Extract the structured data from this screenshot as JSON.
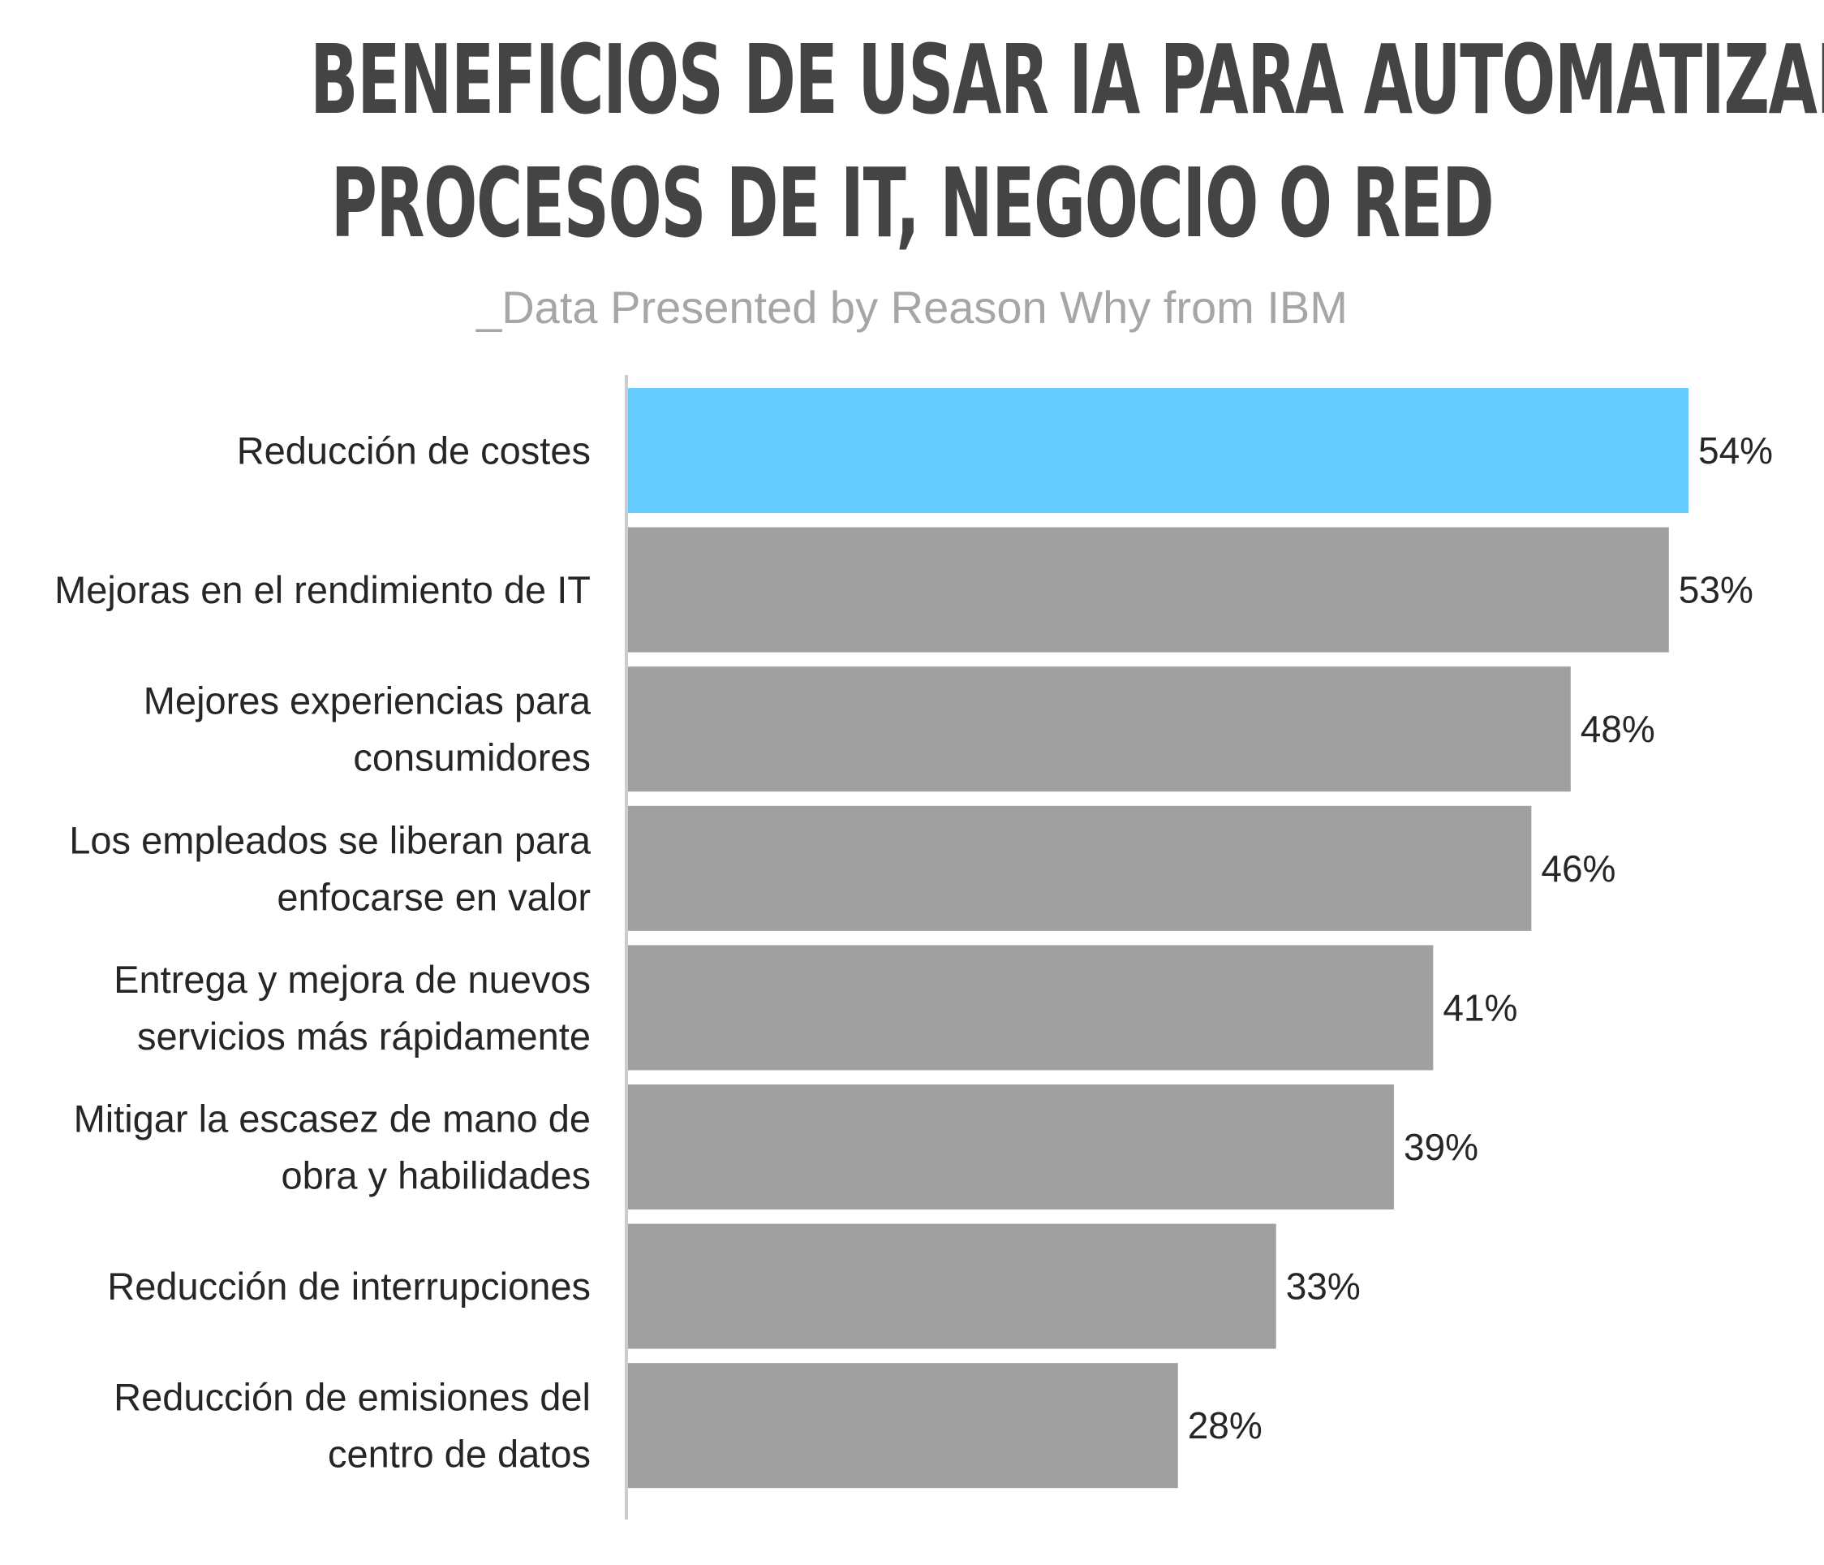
{
  "chart_data": {
    "type": "bar",
    "orientation": "horizontal",
    "title": "BENEFICIOS DE USAR IA PARA AUTOMATIZAR PROCESOS DE IT, NEGOCIO O RED",
    "title_lines": [
      "BENEFICIOS DE USAR IA PARA AUTOMATIZAR",
      "PROCESOS DE IT, NEGOCIO O RED"
    ],
    "subtitle": "_Data Presented by Reason Why from IBM",
    "categories": [
      "Reducción de costes",
      "Mejoras en el rendimiento de IT",
      "Mejores experiencias para consumidores",
      "Los empleados se liberan para enfocarse en valor",
      "Entrega y mejora de nuevos servicios más rápidamente",
      "Mitigar la escasez de mano de obra y habilidades",
      "Reducción de interrupciones",
      "Reducción de emisiones del centro de datos"
    ],
    "category_lines": [
      [
        "Reducción de costes"
      ],
      [
        "Mejoras en el rendimiento de IT"
      ],
      [
        "Mejores experiencias para",
        "consumidores"
      ],
      [
        "Los empleados se liberan para",
        "enfocarse en valor"
      ],
      [
        "Entrega y mejora de nuevos",
        "servicios más rápidamente"
      ],
      [
        "Mitigar la escasez de mano de",
        "obra y habilidades"
      ],
      [
        "Reducción de interrupciones"
      ],
      [
        "Reducción de emisiones del",
        "centro de datos"
      ]
    ],
    "values": [
      54,
      53,
      48,
      46,
      41,
      39,
      33,
      28
    ],
    "value_labels": [
      "54%",
      "53%",
      "48%",
      "46%",
      "41%",
      "39%",
      "33%",
      "28%"
    ],
    "unit": "%",
    "xlim": [
      0,
      54
    ],
    "grid": false,
    "legend": false,
    "highlight_index": 0,
    "colors": {
      "highlight": "#66ccff",
      "bar": "#a0a0a0",
      "axis": "#cccccc",
      "title": "#444444",
      "subtitle": "#a6a6a6",
      "text": "#262626"
    }
  }
}
